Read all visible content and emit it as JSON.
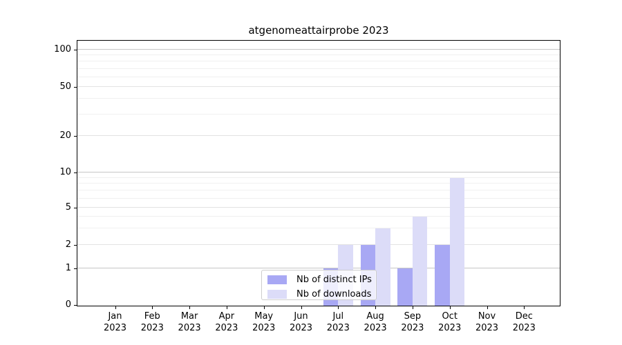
{
  "chart_data": {
    "type": "bar",
    "title": "atgenomeattairprobe 2023",
    "year_label": "2023",
    "categories": [
      "Jan",
      "Feb",
      "Mar",
      "Apr",
      "May",
      "Jun",
      "Jul",
      "Aug",
      "Sep",
      "Oct",
      "Nov",
      "Dec"
    ],
    "series": [
      {
        "name": "Nb of distinct IPs",
        "color": "#a8a8f4",
        "values": [
          0,
          0,
          0,
          0,
          0,
          0,
          1,
          2,
          1,
          2,
          0,
          0
        ]
      },
      {
        "name": "Nb of downloads",
        "color": "#dcdcf8",
        "values": [
          0,
          0,
          0,
          0,
          0,
          0,
          2,
          3,
          4,
          9,
          0,
          0
        ]
      }
    ],
    "y_axis": {
      "scale": "symlog",
      "tick_values": [
        0,
        1,
        2,
        5,
        10,
        20,
        50,
        100
      ],
      "minor_gridline_values": [
        3,
        4,
        6,
        7,
        8,
        9,
        30,
        40,
        60,
        70,
        80,
        90
      ],
      "range_min": 0,
      "range_max_approx": 118
    },
    "legend": {
      "location": "lower center",
      "entries": [
        "Nb of distinct IPs",
        "Nb of downloads"
      ]
    },
    "grid": true,
    "colors": {
      "background": "#ffffff",
      "spine": "#000000",
      "grid_major": "#c6c6c6",
      "grid_labeled": "#e2e2e2",
      "grid_minor": "#f0f0f0",
      "legend_border": "#cccccc"
    }
  }
}
